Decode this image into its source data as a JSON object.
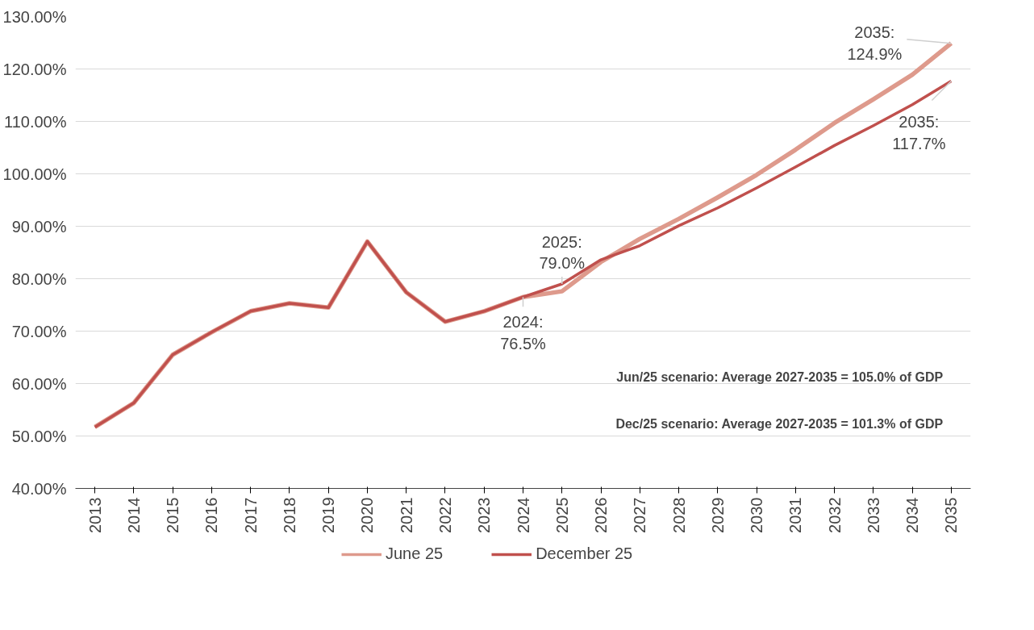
{
  "chart_data": {
    "type": "line",
    "categories": [
      "2013",
      "2014",
      "2015",
      "2016",
      "2017",
      "2018",
      "2019",
      "2020",
      "2021",
      "2022",
      "2023",
      "2024",
      "2025",
      "2026",
      "2027",
      "2028",
      "2029",
      "2030",
      "2031",
      "2032",
      "2033",
      "2034",
      "2035"
    ],
    "series": [
      {
        "name": "June 25",
        "color": "#de9a8c",
        "values": [
          51.7,
          56.3,
          65.5,
          69.8,
          73.8,
          75.3,
          74.5,
          87.1,
          77.4,
          71.8,
          73.8,
          76.5,
          77.6,
          83.2,
          87.6,
          91.4,
          95.5,
          99.8,
          104.6,
          109.7,
          114.2,
          118.9,
          124.9
        ]
      },
      {
        "name": "December 25",
        "color": "#c0504d",
        "values": [
          51.7,
          56.3,
          65.5,
          69.8,
          73.8,
          75.3,
          74.5,
          87.1,
          77.4,
          71.8,
          73.8,
          76.5,
          79.0,
          83.6,
          86.3,
          90.1,
          93.5,
          97.3,
          101.3,
          105.4,
          109.2,
          113.2,
          117.7
        ]
      }
    ],
    "ylim": [
      40,
      130
    ],
    "yticks": [
      {
        "value": 40,
        "label": "40.00%"
      },
      {
        "value": 50,
        "label": "50.00%"
      },
      {
        "value": 60,
        "label": "60.00%"
      },
      {
        "value": 70,
        "label": "70.00%"
      },
      {
        "value": 80,
        "label": "80.00%"
      },
      {
        "value": 90,
        "label": "90.00%"
      },
      {
        "value": 100,
        "label": "100.00%"
      },
      {
        "value": 110,
        "label": "110.00%"
      },
      {
        "value": 120,
        "label": "120.00%"
      },
      {
        "value": 130,
        "label": "130.00%"
      }
    ],
    "grid": "y",
    "legend": "bottom",
    "marker": "none",
    "line_style": "solid",
    "annotations": [
      {
        "text": "2035:\n124.9%",
        "x": "2035",
        "y": 124.9
      },
      {
        "text": "2035:\n117.7%",
        "x": "2035",
        "y": 117.7
      },
      {
        "text": "2025:\n79.0%",
        "x": "2025",
        "y": 79.0
      },
      {
        "text": "2024:\n76.5%",
        "x": "2024",
        "y": 76.5
      },
      "Jun/25 scenario: Average 2027-2035 = 105.0% of GDP",
      "Dec/25 scenario: Average 2027-2035 = 101.3% of GDP"
    ]
  }
}
